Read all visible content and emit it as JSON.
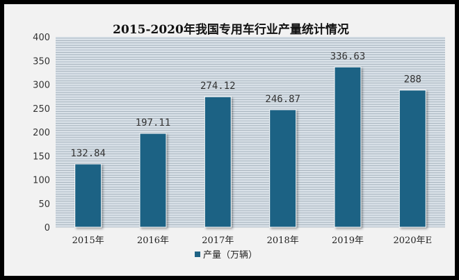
{
  "chart_data": {
    "type": "bar",
    "title": "2015-2020年我国专用车行业产量统计情况",
    "categories": [
      "2015年",
      "2016年",
      "2017年",
      "2018年",
      "2019年",
      "2020年E"
    ],
    "series": [
      {
        "name": "产量（万辆）",
        "values": [
          132.84,
          197.11,
          274.12,
          246.87,
          336.63,
          288
        ]
      }
    ],
    "value_labels": [
      "132.84",
      "197.11",
      "274.12",
      "246.87",
      "336.63",
      "288"
    ],
    "ylim": [
      0,
      400
    ],
    "yticks": [
      "0",
      "50",
      "100",
      "150",
      "200",
      "250",
      "300",
      "350",
      "400"
    ],
    "xlabel": "",
    "ylabel": "",
    "grid": "horizontal dense lines",
    "legend_position": "bottom",
    "colors": {
      "bar": "#1f6284",
      "plot_background": "#d9e1e8",
      "grid_line": "#8a9aa6",
      "frame": "#000000",
      "background": "#f2f2f2"
    }
  }
}
